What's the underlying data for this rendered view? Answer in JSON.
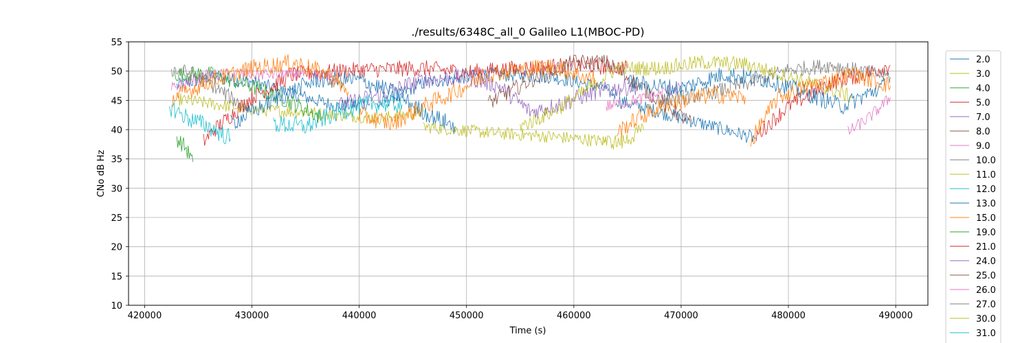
{
  "colors": {
    "grid": "#b0b0b0",
    "axes": "#000000",
    "legend_border": "#cccccc"
  },
  "chart_data": {
    "type": "line",
    "title": "./results/6348C_all_0 Galileo L1(MBOC-PD)",
    "xlabel": "Time (s)",
    "ylabel": "CNo dB Hz",
    "xlim": [
      418500,
      493000
    ],
    "ylim": [
      10,
      55
    ],
    "xticks": [
      420000,
      430000,
      440000,
      450000,
      460000,
      470000,
      480000,
      490000
    ],
    "yticks": [
      10,
      15,
      20,
      25,
      30,
      35,
      40,
      45,
      50,
      55
    ],
    "grid": true,
    "legend_placement": "right, outside",
    "series": [
      {
        "name": "2.0",
        "color": "#1f77b4",
        "noise": 1.2,
        "segments": [
          [
            [
              423000,
              47.5
            ],
            [
              426000,
              49
            ],
            [
              430000,
              48.2
            ],
            [
              434000,
              46
            ],
            [
              438000,
              44
            ],
            [
              441000,
              44.5
            ]
          ],
          [
            [
              441500,
              44
            ],
            [
              446000,
              48
            ],
            [
              452000,
              49.5
            ],
            [
              458000,
              49
            ],
            [
              462000,
              47.5
            ],
            [
              464000,
              46
            ]
          ],
          [
            [
              464000,
              45
            ],
            [
              470000,
              42
            ],
            [
              474000,
              40
            ],
            [
              477000,
              38.5
            ]
          ]
        ]
      },
      {
        "name": "3.0",
        "color": "#bcbd22",
        "noise": 1.1,
        "segments": [
          [
            [
              423000,
              45.2
            ],
            [
              430000,
              43.5
            ],
            [
              436000,
              42.8
            ],
            [
              442000,
              42
            ],
            [
              446000,
              43
            ]
          ],
          [
            [
              446000,
              40.5
            ],
            [
              452000,
              39.5
            ],
            [
              458000,
              38.8
            ],
            [
              463000,
              38
            ]
          ]
        ]
      },
      {
        "name": "4.0",
        "color": "#2ca02c",
        "noise": 1.4,
        "segments": [
          [
            [
              422800,
              49.5
            ],
            [
              426000,
              49.5
            ],
            [
              429000,
              48
            ],
            [
              432000,
              46
            ],
            [
              435000,
              43.5
            ],
            [
              436500,
              42
            ]
          ],
          [
            [
              423000,
              38.5
            ],
            [
              423800,
              37
            ],
            [
              424500,
              34.5
            ]
          ]
        ]
      },
      {
        "name": "5.0",
        "color": "#d62728",
        "noise": 1.4,
        "segments": [
          [
            [
              425500,
              38
            ],
            [
              426500,
              40
            ],
            [
              430000,
              45.5
            ],
            [
              434000,
              49.5
            ],
            [
              440000,
              50.2
            ],
            [
              446000,
              50.5
            ],
            [
              450000,
              49.8
            ],
            [
              455000,
              50.5
            ],
            [
              460000,
              51
            ],
            [
              465000,
              50.5
            ]
          ],
          [
            [
              477000,
              39
            ],
            [
              480000,
              44
            ],
            [
              484000,
              48
            ],
            [
              487000,
              49.5
            ],
            [
              489500,
              51
            ]
          ]
        ]
      },
      {
        "name": "7.0",
        "color": "#9467bd",
        "noise": 1.5,
        "segments": [
          [
            [
              438000,
              44
            ],
            [
              442000,
              46
            ],
            [
              446000,
              48.5
            ],
            [
              450000,
              49
            ],
            [
              453000,
              47.5
            ],
            [
              456000,
              43
            ],
            [
              459000,
              44.5
            ],
            [
              462000,
              46.5
            ],
            [
              466000,
              47.5
            ]
          ]
        ]
      },
      {
        "name": "8.0",
        "color": "#8c564b",
        "noise": 1.4,
        "segments": [
          [
            [
              452000,
              44.5
            ],
            [
              456000,
              48.5
            ],
            [
              460000,
              51.5
            ],
            [
              463000,
              51.5
            ],
            [
              465000,
              49
            ],
            [
              468000,
              45
            ],
            [
              471000,
              41
            ]
          ]
        ]
      },
      {
        "name": "9.0",
        "color": "#e377c2",
        "noise": 1.1,
        "segments": [
          [
            [
              422500,
              47
            ],
            [
              426000,
              49.3
            ],
            [
              430000,
              49.5
            ],
            [
              435000,
              49.5
            ],
            [
              438000,
              48.5
            ]
          ],
          [
            [
              463000,
              44
            ],
            [
              467000,
              45.5
            ],
            [
              470000,
              47.5
            ]
          ],
          [
            [
              485500,
              39.5
            ],
            [
              487500,
              42
            ],
            [
              489500,
              45.5
            ]
          ]
        ]
      },
      {
        "name": "10.0",
        "color": "#7f7f7f",
        "noise": 1.3,
        "segments": [
          [
            [
              422500,
              50.2
            ],
            [
              424000,
              49.8
            ],
            [
              426000,
              48
            ],
            [
              428000,
              45.5
            ],
            [
              430000,
              43
            ]
          ],
          [
            [
              468000,
              45
            ],
            [
              472000,
              46
            ],
            [
              476000,
              47.8
            ],
            [
              480000,
              50.2
            ],
            [
              484000,
              51
            ],
            [
              489500,
              49
            ]
          ]
        ]
      },
      {
        "name": "11.0",
        "color": "#bcbd22",
        "noise": 1.3,
        "segments": [
          [
            [
              455000,
              40.5
            ],
            [
              458000,
              43
            ],
            [
              461000,
              46.5
            ],
            [
              464000,
              50.5
            ],
            [
              468000,
              50.5
            ],
            [
              472000,
              51.5
            ],
            [
              476000,
              51.2
            ],
            [
              480000,
              49
            ],
            [
              483000,
              47.5
            ],
            [
              486000,
              45.5
            ]
          ],
          [
            [
              462700,
              38
            ],
            [
              464500,
              37.8
            ],
            [
              466500,
              40
            ]
          ]
        ]
      },
      {
        "name": "12.0",
        "color": "#17becf",
        "noise": 1.6,
        "segments": [
          [
            [
              422300,
              44
            ],
            [
              424000,
              42
            ],
            [
              426000,
              40.5
            ],
            [
              428000,
              38.5
            ]
          ],
          [
            [
              432000,
              41
            ],
            [
              435000,
              40.5
            ],
            [
              438000,
              43
            ],
            [
              441000,
              44.5
            ],
            [
              444000,
              44.3
            ]
          ]
        ]
      },
      {
        "name": "13.0",
        "color": "#1f77b4",
        "noise": 1.5,
        "segments": [
          [
            [
              428000,
              41
            ],
            [
              432000,
              45
            ],
            [
              436000,
              48.5
            ],
            [
              440000,
              48.5
            ],
            [
              443000,
              46.5
            ],
            [
              446000,
              43
            ],
            [
              449000,
              40.5
            ]
          ],
          [
            [
              465000,
              48
            ],
            [
              470000,
              47
            ],
            [
              474000,
              49.5
            ],
            [
              478000,
              48.5
            ],
            [
              482000,
              46
            ],
            [
              485000,
              44
            ],
            [
              489000,
              47.5
            ]
          ]
        ]
      },
      {
        "name": "15.0",
        "color": "#ff7f0e",
        "noise": 1.5,
        "segments": [
          [
            [
              422500,
              45.3
            ],
            [
              426000,
              48.2
            ],
            [
              430000,
              50.5
            ],
            [
              434000,
              51.5
            ],
            [
              437000,
              49.5
            ],
            [
              439000,
              46.5
            ]
          ],
          [
            [
              440000,
              42.5
            ],
            [
              443000,
              41
            ],
            [
              446000,
              44
            ],
            [
              449000,
              46.5
            ],
            [
              452000,
              49.5
            ],
            [
              455000,
              50.3
            ],
            [
              458000,
              50.8
            ],
            [
              462000,
              48.5
            ]
          ],
          [
            [
              464000,
              39.5
            ],
            [
              466000,
              42
            ],
            [
              469000,
              44.5
            ],
            [
              473000,
              46
            ],
            [
              476000,
              45.5
            ]
          ],
          [
            [
              476500,
              38
            ],
            [
              479000,
              45.5
            ],
            [
              482000,
              47.5
            ],
            [
              486000,
              49.5
            ],
            [
              489500,
              47.5
            ]
          ]
        ]
      },
      {
        "name": "19.0",
        "color": "#2ca02c",
        "noise": 1.2,
        "segments": []
      },
      {
        "name": "21.0",
        "color": "#d62728",
        "noise": 1.2,
        "segments": []
      },
      {
        "name": "24.0",
        "color": "#9467bd",
        "noise": 1.2,
        "segments": []
      },
      {
        "name": "25.0",
        "color": "#8c564b",
        "noise": 1.2,
        "segments": []
      },
      {
        "name": "26.0",
        "color": "#e377c2",
        "noise": 1.2,
        "segments": []
      },
      {
        "name": "27.0",
        "color": "#7f7f7f",
        "noise": 1.2,
        "segments": []
      },
      {
        "name": "30.0",
        "color": "#bcbd22",
        "noise": 1.2,
        "segments": []
      },
      {
        "name": "31.0",
        "color": "#17becf",
        "noise": 1.2,
        "segments": []
      }
    ]
  }
}
